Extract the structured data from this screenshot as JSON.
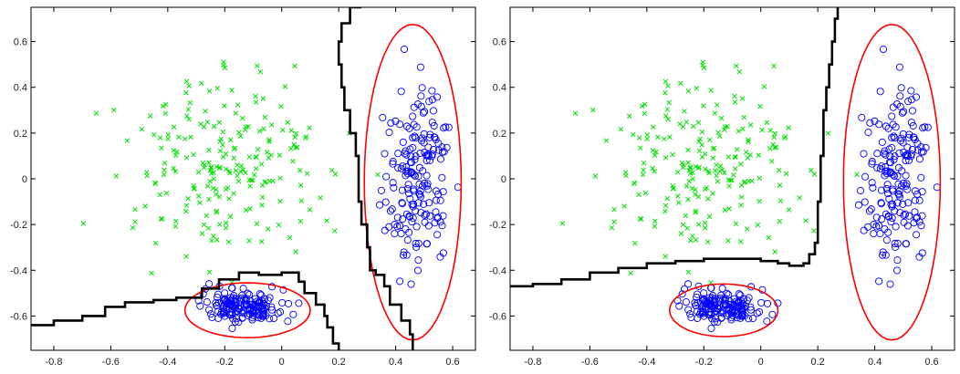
{
  "chart_data": [
    {
      "type": "scatter",
      "title": "",
      "xlabel": "",
      "ylabel": "",
      "xlim": [
        -0.88,
        0.68
      ],
      "ylim": [
        -0.75,
        0.75
      ],
      "x_ticks": [
        -0.8,
        -0.6,
        -0.4,
        -0.2,
        0,
        0.2,
        0.4,
        0.6
      ],
      "x_tick_labels": [
        "-0.8",
        "-0.6",
        "-0.4",
        "-0.2",
        "0",
        "0.2",
        "0.4",
        "0.6"
      ],
      "y_ticks": [
        0.6,
        0.4,
        0.2,
        0,
        -0.2,
        -0.4,
        -0.6
      ],
      "y_tick_labels": [
        "0.6",
        "0.4",
        "0.2",
        "0",
        "-0.2",
        "-0.4",
        "-0.6"
      ],
      "grid": false,
      "legend": "none",
      "point_sets": [
        {
          "marker": "x",
          "color": "#00e000",
          "centre": [
            -0.2,
            0.05
          ],
          "spread": [
            0.17,
            0.2
          ],
          "count": 220,
          "x_range": [
            -0.85,
            0.4
          ],
          "y_range": [
            -0.7,
            0.7
          ]
        },
        {
          "marker": "o",
          "color": "#0000ff",
          "centre": [
            -0.13,
            -0.56
          ],
          "spread": [
            0.07,
            0.035
          ],
          "count": 160,
          "x_range": [
            -0.3,
            0.06
          ],
          "y_range": [
            -0.66,
            -0.45
          ]
        },
        {
          "marker": "o",
          "color": "#0000ff",
          "centre": [
            0.47,
            0.0
          ],
          "spread": [
            0.06,
            0.2
          ],
          "count": 180,
          "x_range": [
            0.32,
            0.62
          ],
          "y_range": [
            -0.5,
            0.57
          ]
        }
      ],
      "ellipses": [
        {
          "color": "#ff0000",
          "centre": [
            -0.12,
            -0.575
          ],
          "radii": [
            0.22,
            0.12
          ]
        },
        {
          "color": "#ff0000",
          "centre": [
            0.46,
            -0.015
          ],
          "radii": [
            0.17,
            0.69
          ]
        }
      ],
      "boundary": {
        "color": "#000000",
        "points": [
          [
            -0.88,
            -0.64
          ],
          [
            -0.8,
            -0.62
          ],
          [
            -0.7,
            -0.6
          ],
          [
            -0.62,
            -0.56
          ],
          [
            -0.55,
            -0.54
          ],
          [
            -0.45,
            -0.53
          ],
          [
            -0.37,
            -0.52
          ],
          [
            -0.28,
            -0.48
          ],
          [
            -0.22,
            -0.44
          ],
          [
            -0.15,
            -0.41
          ],
          [
            -0.08,
            -0.42
          ],
          [
            0.0,
            -0.41
          ],
          [
            0.06,
            -0.45
          ],
          [
            0.08,
            -0.5
          ],
          [
            0.12,
            -0.55
          ],
          [
            0.15,
            -0.6
          ],
          [
            0.16,
            -0.65
          ],
          [
            0.18,
            -0.72
          ],
          [
            0.2,
            -0.75
          ]
        ],
        "branch": [
          [
            0.28,
            0.75
          ],
          [
            0.24,
            0.68
          ],
          [
            0.21,
            0.6
          ],
          [
            0.2,
            0.5
          ],
          [
            0.21,
            0.4
          ],
          [
            0.22,
            0.3
          ],
          [
            0.24,
            0.2
          ],
          [
            0.26,
            0.1
          ],
          [
            0.27,
            0.0
          ],
          [
            0.27,
            -0.1
          ],
          [
            0.28,
            -0.2
          ],
          [
            0.3,
            -0.3
          ],
          [
            0.31,
            -0.4
          ],
          [
            0.33,
            -0.42
          ],
          [
            0.36,
            -0.47
          ],
          [
            0.38,
            -0.55
          ],
          [
            0.42,
            -0.62
          ],
          [
            0.45,
            -0.68
          ],
          [
            0.46,
            -0.75
          ]
        ]
      }
    },
    {
      "type": "scatter",
      "title": "",
      "xlabel": "",
      "ylabel": "",
      "xlim": [
        -0.88,
        0.68
      ],
      "ylim": [
        -0.75,
        0.75
      ],
      "x_ticks": [
        -0.8,
        -0.6,
        -0.4,
        -0.2,
        0,
        0.2,
        0.4,
        0.6
      ],
      "x_tick_labels": [
        "-0.8",
        "-0.6",
        "-0.4",
        "-0.2",
        "0",
        "0.2",
        "0.4",
        "0.6"
      ],
      "y_ticks": [
        0.6,
        0.4,
        0.2,
        0,
        -0.2,
        -0.4,
        -0.6
      ],
      "y_tick_labels": [
        "0.6",
        "0.4",
        "0.2",
        "0",
        "-0.2",
        "-0.4",
        "-0.6"
      ],
      "grid": false,
      "legend": "none",
      "point_sets": [
        {
          "marker": "x",
          "color": "#00e000",
          "centre": [
            -0.2,
            0.05
          ],
          "spread": [
            0.17,
            0.2
          ],
          "count": 220,
          "x_range": [
            -0.85,
            0.4
          ],
          "y_range": [
            -0.7,
            0.7
          ]
        },
        {
          "marker": "o",
          "color": "#0000ff",
          "centre": [
            -0.13,
            -0.56
          ],
          "spread": [
            0.07,
            0.035
          ],
          "count": 160,
          "x_range": [
            -0.3,
            0.06
          ],
          "y_range": [
            -0.66,
            -0.45
          ]
        },
        {
          "marker": "o",
          "color": "#0000ff",
          "centre": [
            0.47,
            0.0
          ],
          "spread": [
            0.06,
            0.2
          ],
          "count": 180,
          "x_range": [
            0.32,
            0.62
          ],
          "y_range": [
            -0.5,
            0.57
          ]
        }
      ],
      "ellipses": [
        {
          "color": "#ff0000",
          "centre": [
            -0.13,
            -0.575
          ],
          "radii": [
            0.19,
            0.115
          ]
        },
        {
          "color": "#ff0000",
          "centre": [
            0.46,
            -0.015
          ],
          "radii": [
            0.17,
            0.69
          ]
        }
      ],
      "boundary": {
        "color": "#000000",
        "points": [
          [
            -0.88,
            -0.47
          ],
          [
            -0.8,
            -0.46
          ],
          [
            -0.7,
            -0.44
          ],
          [
            -0.6,
            -0.41
          ],
          [
            -0.5,
            -0.39
          ],
          [
            -0.4,
            -0.37
          ],
          [
            -0.3,
            -0.36
          ],
          [
            -0.2,
            -0.35
          ],
          [
            -0.1,
            -0.35
          ],
          [
            0.0,
            -0.36
          ],
          [
            0.06,
            -0.37
          ],
          [
            0.1,
            -0.38
          ],
          [
            0.15,
            -0.37
          ],
          [
            0.17,
            -0.33
          ],
          [
            0.19,
            -0.28
          ],
          [
            0.2,
            -0.2
          ],
          [
            0.2,
            -0.1
          ],
          [
            0.21,
            0.0
          ],
          [
            0.21,
            0.1
          ],
          [
            0.22,
            0.2
          ],
          [
            0.22,
            0.3
          ],
          [
            0.23,
            0.4
          ],
          [
            0.24,
            0.5
          ],
          [
            0.25,
            0.6
          ],
          [
            0.26,
            0.7
          ],
          [
            0.27,
            0.75
          ]
        ],
        "branch": []
      }
    }
  ]
}
